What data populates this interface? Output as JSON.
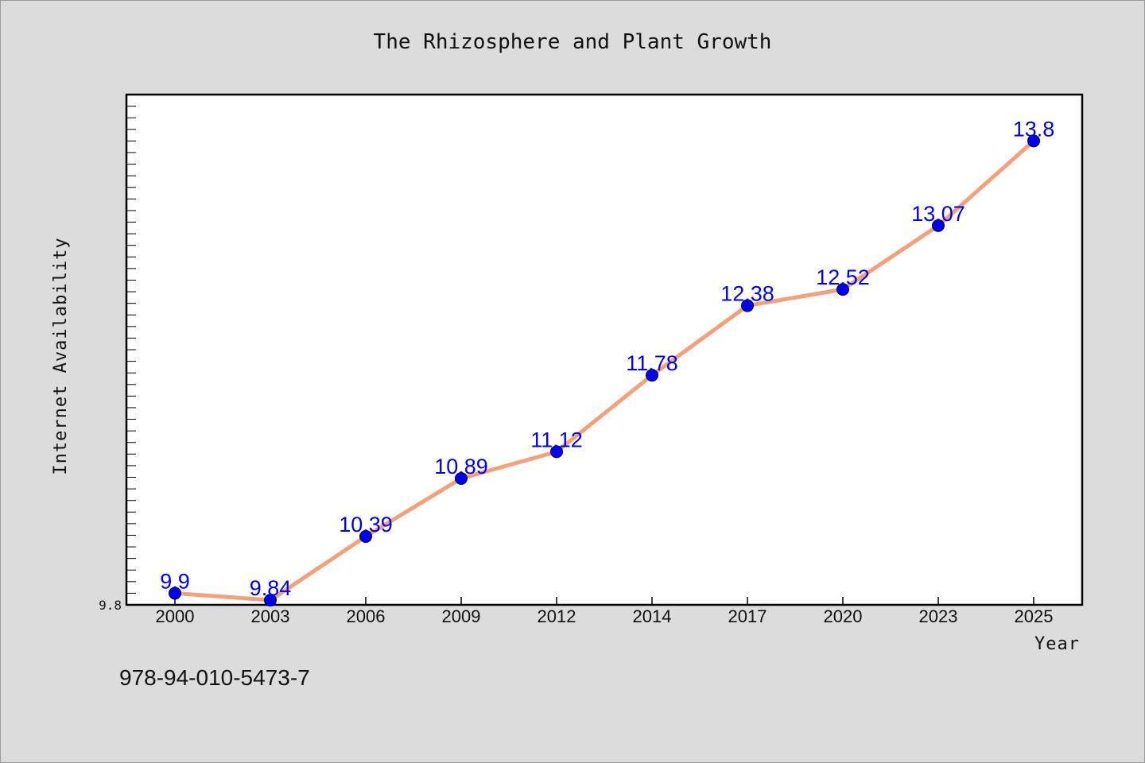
{
  "chart_data": {
    "type": "line",
    "title": "The Rhizosphere and Plant Growth",
    "xlabel": "Year",
    "ylabel": "Internet Availability",
    "categories": [
      "2000",
      "2003",
      "2006",
      "2009",
      "2012",
      "2014",
      "2017",
      "2020",
      "2023",
      "2025"
    ],
    "series": [
      {
        "values": [
          9.9,
          9.84,
          10.39,
          10.89,
          11.12,
          11.78,
          12.38,
          12.52,
          13.07,
          13.8
        ]
      }
    ],
    "data_labels": [
      "9.9",
      "9.84",
      "10.39",
      "10.89",
      "11.12",
      "11.78",
      "12.38",
      "12.52",
      "13.07",
      "13.8"
    ],
    "y_tick_label": "9.8",
    "ylim": [
      9.8,
      14.2
    ],
    "grid": false,
    "line_color": "#f4a07a",
    "marker_color": "#0000ee",
    "label_color": "#0000ee"
  },
  "footer": {
    "isbn": "978-94-010-5473-7"
  }
}
